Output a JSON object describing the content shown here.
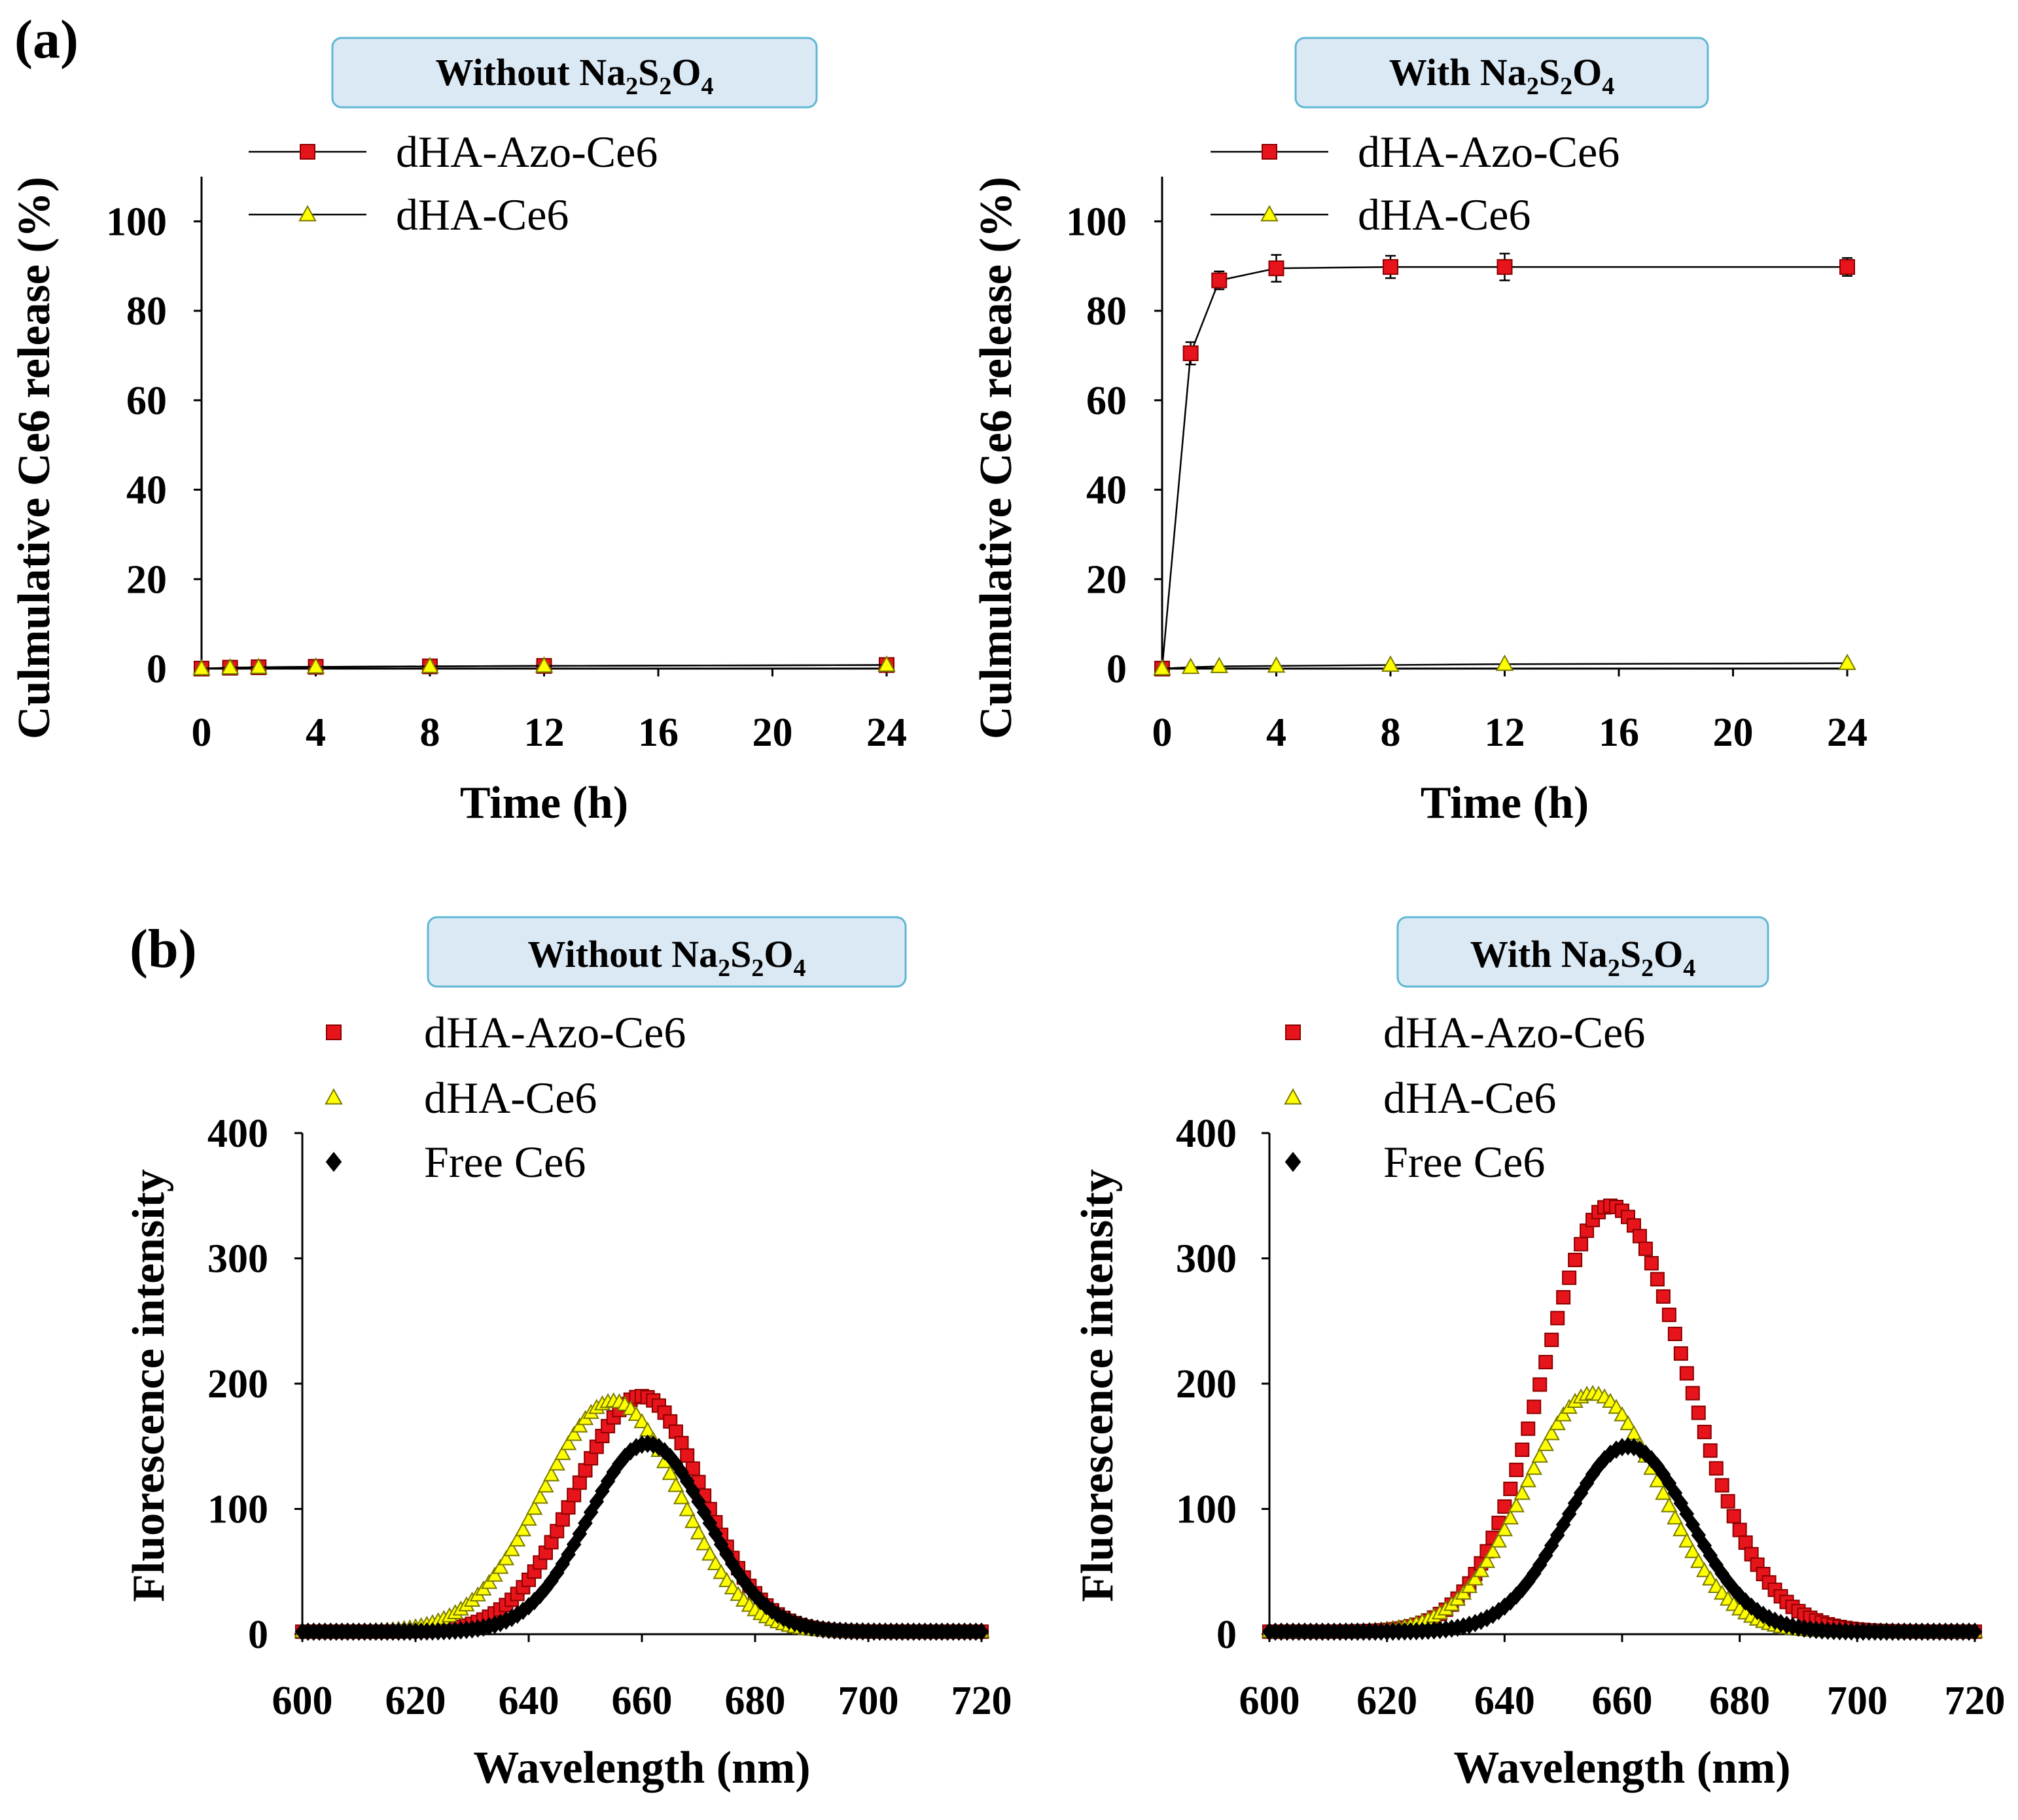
{
  "panel_labels": [
    "(a)",
    "(b)"
  ],
  "chart_data": [
    {
      "type": "line",
      "panel": "(a)",
      "title": "Without Na₂S₂O₄",
      "title_parts": [
        "Without Na",
        "2",
        "S",
        "2",
        "O",
        "4"
      ],
      "xlabel": "Time (h)",
      "ylabel": "Culmulative Ce6 release (%)",
      "xlim": [
        0,
        24
      ],
      "ylim": [
        0,
        110
      ],
      "xticks": [
        0,
        4,
        8,
        12,
        16,
        20,
        24
      ],
      "yticks": [
        0,
        20,
        40,
        60,
        80,
        100
      ],
      "grid": false,
      "legend_position": "top-left",
      "series": [
        {
          "name": "dHA-Azo-Ce6",
          "marker": "square",
          "color": "#e8141b",
          "x": [
            0,
            1,
            2,
            4,
            8,
            12,
            24
          ],
          "y": [
            0,
            0.2,
            0.3,
            0.4,
            0.5,
            0.6,
            0.8
          ]
        },
        {
          "name": "dHA-Ce6",
          "marker": "triangle",
          "color": "#ffff00",
          "x": [
            0,
            1,
            2,
            4,
            8,
            12,
            24
          ],
          "y": [
            0,
            0.2,
            0.3,
            0.4,
            0.5,
            0.6,
            0.8
          ]
        }
      ]
    },
    {
      "type": "line",
      "panel": "(a)",
      "title": "With Na₂S₂O₄",
      "title_parts": [
        "With Na",
        "2",
        "S",
        "2",
        "O",
        "4"
      ],
      "xlabel": "Time (h)",
      "ylabel": "Culmulative Ce6 release (%)",
      "xlim": [
        0,
        24
      ],
      "ylim": [
        0,
        110
      ],
      "xticks": [
        0,
        4,
        8,
        12,
        16,
        20,
        24
      ],
      "yticks": [
        0,
        20,
        40,
        60,
        80,
        100
      ],
      "grid": false,
      "legend_position": "top-left",
      "series": [
        {
          "name": "dHA-Azo-Ce6",
          "marker": "square",
          "color": "#e8141b",
          "x": [
            0,
            1,
            2,
            4,
            8,
            12,
            24
          ],
          "y": [
            0,
            70.5,
            86.8,
            89.5,
            89.8,
            89.8,
            89.8
          ],
          "err": [
            0,
            2.5,
            2,
            3,
            2.5,
            3,
            2
          ]
        },
        {
          "name": "dHA-Ce6",
          "marker": "triangle",
          "color": "#ffff00",
          "x": [
            0,
            1,
            2,
            4,
            8,
            12,
            24
          ],
          "y": [
            0,
            0.3,
            0.5,
            0.6,
            0.8,
            1.0,
            1.2
          ]
        }
      ]
    },
    {
      "type": "scatter",
      "panel": "(b)",
      "title": "Without Na₂S₂O₄",
      "title_parts": [
        "Without Na",
        "2",
        "S",
        "2",
        "O",
        "4"
      ],
      "xlabel": "Wavelength (nm)",
      "ylabel": "Fluorescence intensity",
      "xlim": [
        600,
        720
      ],
      "ylim": [
        0,
        400
      ],
      "xticks": [
        600,
        620,
        640,
        660,
        680,
        700,
        720
      ],
      "yticks": [
        0,
        100,
        200,
        300,
        400
      ],
      "grid": false,
      "legend_position": "top-left",
      "x_range": [
        600,
        720,
        1
      ],
      "series": [
        {
          "name": "dHA-Azo-Ce6",
          "marker": "square",
          "color": "#e8141b",
          "peak": 660,
          "amplitude": 188,
          "sigma_left": 11.5,
          "sigma_right": 10.5
        },
        {
          "name": "dHA-Ce6",
          "marker": "triangle",
          "color": "#ffff00",
          "peak": 655,
          "amplitude": 184,
          "sigma_left": 12.5,
          "sigma_right": 11.5
        },
        {
          "name": "Free Ce6",
          "marker": "diamond",
          "color": "#000000",
          "peak": 661,
          "amplitude": 150,
          "sigma_left": 10.5,
          "sigma_right": 10.5
        }
      ]
    },
    {
      "type": "scatter",
      "panel": "(b)",
      "title": "With Na₂S₂O₄",
      "title_parts": [
        "With Na",
        "2",
        "S",
        "2",
        "O",
        "4"
      ],
      "xlabel": "Wavelength (nm)",
      "ylabel": "Fluorescence intensity",
      "xlim": [
        600,
        720
      ],
      "ylim": [
        0,
        400
      ],
      "xticks": [
        600,
        620,
        640,
        660,
        680,
        700,
        720
      ],
      "yticks": [
        0,
        100,
        200,
        300,
        400
      ],
      "grid": false,
      "legend_position": "top-left",
      "x_range": [
        600,
        720,
        1
      ],
      "series": [
        {
          "name": "dHA-Azo-Ce6",
          "marker": "square",
          "color": "#e8141b",
          "peak": 658,
          "amplitude": 340,
          "sigma_left": 11.5,
          "sigma_right": 13.0
        },
        {
          "name": "dHA-Ce6",
          "marker": "triangle",
          "color": "#ffff00",
          "peak": 655,
          "amplitude": 190,
          "sigma_left": 11.5,
          "sigma_right": 11.5
        },
        {
          "name": "Free Ce6",
          "marker": "diamond",
          "color": "#000000",
          "peak": 661,
          "amplitude": 148,
          "sigma_left": 10.5,
          "sigma_right": 10.5
        }
      ]
    }
  ]
}
